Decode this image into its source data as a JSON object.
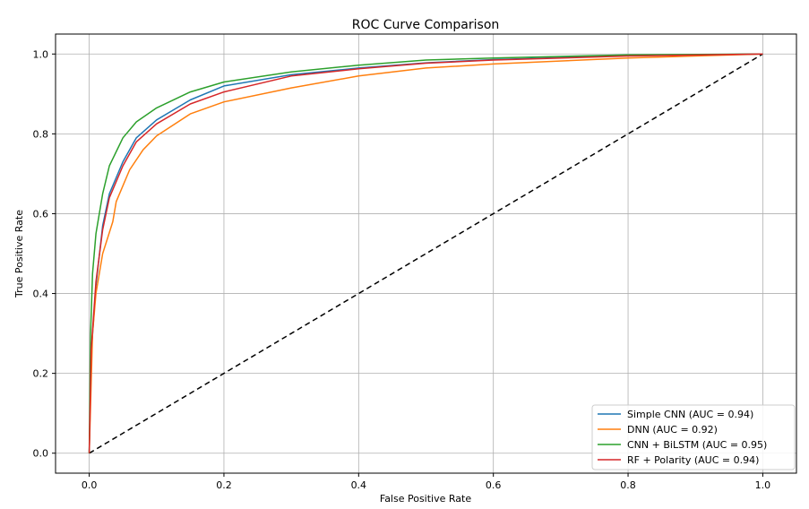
{
  "chart_data": {
    "type": "line",
    "title": "ROC Curve Comparison",
    "xlabel": "False Positive Rate",
    "ylabel": "True Positive Rate",
    "xlim": [
      -0.05,
      1.05
    ],
    "ylim": [
      -0.05,
      1.05
    ],
    "xticks": [
      "0.0",
      "0.2",
      "0.4",
      "0.6",
      "0.8",
      "1.0"
    ],
    "yticks": [
      "0.0",
      "0.2",
      "0.4",
      "0.6",
      "0.8",
      "1.0"
    ],
    "grid": true,
    "legend_position": "bottom-right",
    "series": [
      {
        "name": "Simple CNN (AUC = 0.94)",
        "color": "#1f77b4",
        "x": [
          0,
          0.003,
          0.01,
          0.02,
          0.03,
          0.05,
          0.07,
          0.1,
          0.15,
          0.2,
          0.3,
          0.4,
          0.5,
          0.6,
          0.8,
          1
        ],
        "y": [
          0,
          0.25,
          0.42,
          0.57,
          0.65,
          0.73,
          0.79,
          0.835,
          0.885,
          0.92,
          0.948,
          0.965,
          0.978,
          0.986,
          0.996,
          1
        ]
      },
      {
        "name": "DNN (AUC = 0.92)",
        "color": "#ff7f0e",
        "x": [
          0,
          0.005,
          0.01,
          0.02,
          0.035,
          0.04,
          0.06,
          0.08,
          0.1,
          0.15,
          0.2,
          0.3,
          0.4,
          0.5,
          0.6,
          0.8,
          1
        ],
        "y": [
          0,
          0.3,
          0.4,
          0.5,
          0.58,
          0.63,
          0.71,
          0.76,
          0.795,
          0.85,
          0.88,
          0.915,
          0.945,
          0.965,
          0.975,
          0.99,
          1
        ]
      },
      {
        "name": "CNN + BiLSTM (AUC = 0.95)",
        "color": "#2ca02c",
        "x": [
          0,
          0.002,
          0.005,
          0.01,
          0.02,
          0.03,
          0.05,
          0.07,
          0.1,
          0.15,
          0.2,
          0.3,
          0.4,
          0.5,
          0.6,
          0.8,
          1
        ],
        "y": [
          0,
          0.3,
          0.45,
          0.55,
          0.65,
          0.72,
          0.79,
          0.83,
          0.865,
          0.905,
          0.93,
          0.955,
          0.972,
          0.985,
          0.99,
          0.998,
          1
        ]
      },
      {
        "name": "RF + Polarity (AUC = 0.94)",
        "color": "#d62728",
        "x": [
          0,
          0.003,
          0.01,
          0.02,
          0.03,
          0.05,
          0.07,
          0.1,
          0.15,
          0.2,
          0.3,
          0.4,
          0.5,
          0.6,
          0.8,
          1
        ],
        "y": [
          0,
          0.26,
          0.43,
          0.56,
          0.64,
          0.72,
          0.78,
          0.825,
          0.875,
          0.905,
          0.945,
          0.963,
          0.977,
          0.985,
          0.995,
          1
        ]
      }
    ],
    "reference_line": {
      "x": [
        0,
        1
      ],
      "y": [
        0,
        1
      ],
      "color": "#000000",
      "style": "dashed"
    }
  }
}
